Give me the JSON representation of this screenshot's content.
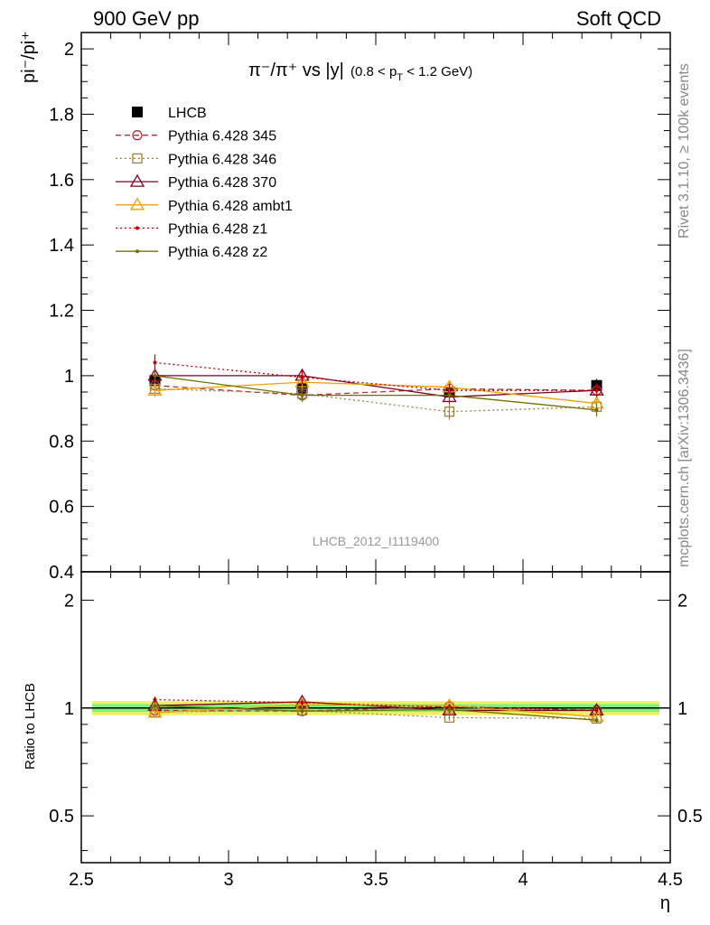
{
  "header": {
    "left": "900 GeV pp",
    "right": "Soft QCD"
  },
  "side_labels": {
    "rivet": "Rivet 3.1.10, ≥ 100k events",
    "mcplots": "mcplots.cern.ch [arXiv:1306.3436]"
  },
  "title": {
    "main": "π⁻/π⁺ vs |y|",
    "cut": "(0.8 < p",
    "cut_sub": "T",
    "cut_end": " < 1.2 GeV)"
  },
  "watermark": "LHCB_2012_I1119400",
  "ylabel_top": "pi⁻/pi⁺",
  "ylabel_bottom": "Ratio to LHCB",
  "xlabel": "η",
  "colors": {
    "LHCB": "#000000",
    "p345": "#b03040",
    "p346": "#a08040",
    "p370": "#800020",
    "ambt1": "#f0a000",
    "z1": "#c00000",
    "z2": "#707000",
    "band_yellow": "#f0f060",
    "band_green": "#80f080"
  },
  "chart_data": [
    {
      "type": "line",
      "panel": "main",
      "x": [
        2.75,
        3.25,
        3.75,
        4.25
      ],
      "xlim": [
        2.5,
        4.5
      ],
      "ylim": [
        0.4,
        2.05
      ],
      "yticks": [
        "0.4",
        "0.6",
        "0.8",
        "1",
        "1.2",
        "1.4",
        "1.6",
        "1.8",
        "2"
      ],
      "xticks": [
        "2.5",
        "3",
        "3.5",
        "4",
        "4.5"
      ],
      "legend_position": "top-left",
      "series": [
        {
          "name": "LHCB",
          "values": [
            0.985,
            0.96,
            0.95,
            0.97
          ],
          "errors": [
            0.02,
            0.02,
            0.02,
            0.02
          ],
          "style": "square-filled",
          "color": "#000000"
        },
        {
          "name": "Pythia 6.428 345",
          "values": [
            0.97,
            0.94,
            0.96,
            0.955
          ],
          "errors": [
            0.02,
            0.02,
            0.02,
            0.02
          ],
          "style": "circle-dashed",
          "color": "#b03040"
        },
        {
          "name": "Pythia 6.428 346",
          "values": [
            0.96,
            0.945,
            0.89,
            0.905
          ],
          "errors": [
            0.02,
            0.02,
            0.025,
            0.02
          ],
          "style": "square-dotted",
          "color": "#a08040"
        },
        {
          "name": "Pythia 6.428 370",
          "values": [
            1.0,
            1.0,
            0.935,
            0.955
          ],
          "errors": [
            0.02,
            0.02,
            0.02,
            0.02
          ],
          "style": "triangle-solid",
          "color": "#800020"
        },
        {
          "name": "Pythia 6.428 ambt1",
          "values": [
            0.955,
            0.98,
            0.965,
            0.915
          ],
          "errors": [
            0.02,
            0.02,
            0.02,
            0.02
          ],
          "style": "triangle-solid",
          "color": "#f0a000"
        },
        {
          "name": "Pythia 6.428 z1",
          "values": [
            1.04,
            0.995,
            0.955,
            0.955
          ],
          "errors": [
            0.025,
            0.02,
            0.02,
            0.02
          ],
          "style": "dot-dotted",
          "color": "#c00000"
        },
        {
          "name": "Pythia 6.428 z2",
          "values": [
            1.0,
            0.94,
            0.94,
            0.895
          ],
          "errors": [
            0.02,
            0.02,
            0.02,
            0.02
          ],
          "style": "dot-solid",
          "color": "#707000"
        }
      ]
    },
    {
      "type": "line",
      "panel": "ratio",
      "x": [
        2.75,
        3.25,
        3.75,
        4.25
      ],
      "xlim": [
        2.5,
        4.5
      ],
      "ylim": [
        0.37,
        2.4
      ],
      "log_y": true,
      "yticks": [
        "0.5",
        "1",
        "2"
      ],
      "series": [
        {
          "name": "Pythia 6.428 345",
          "values": [
            0.985,
            0.98,
            1.01,
            0.985
          ],
          "color": "#b03040"
        },
        {
          "name": "Pythia 6.428 346",
          "values": [
            0.975,
            0.985,
            0.94,
            0.935
          ],
          "color": "#a08040"
        },
        {
          "name": "Pythia 6.428 370",
          "values": [
            1.015,
            1.04,
            0.985,
            0.985
          ],
          "color": "#800020"
        },
        {
          "name": "Pythia 6.428 ambt1",
          "values": [
            0.97,
            1.02,
            1.015,
            0.945
          ],
          "color": "#f0a000"
        },
        {
          "name": "Pythia 6.428 z1",
          "values": [
            1.055,
            1.035,
            1.005,
            0.985
          ],
          "color": "#c00000"
        },
        {
          "name": "Pythia 6.428 z2",
          "values": [
            1.015,
            0.98,
            0.99,
            0.925
          ],
          "color": "#707000"
        }
      ]
    }
  ]
}
